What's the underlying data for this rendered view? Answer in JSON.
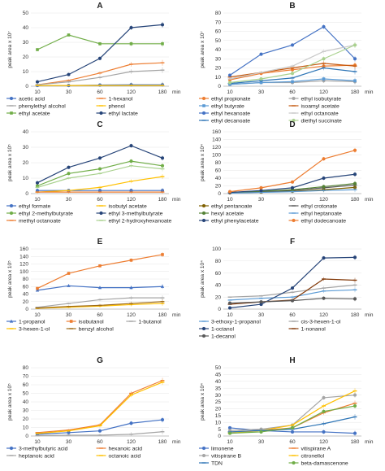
{
  "chart_data": [
    {
      "type": "line",
      "title": "A",
      "ylabel": "peak area x 10⁷",
      "x_unit": "min",
      "x": [
        10,
        30,
        60,
        120,
        180
      ],
      "ylim": [
        0,
        50
      ],
      "yticks": [
        0,
        10,
        20,
        30,
        40,
        50
      ],
      "legend_position": "bottom",
      "legend_columns": 2,
      "series": [
        {
          "name": "acetic acid",
          "color": "#4472c4",
          "marker": "circle",
          "values": [
            0.5,
            0.5,
            0.8,
            1,
            1
          ]
        },
        {
          "name": "1-hexanol",
          "color": "#ed7d31",
          "marker": "dash",
          "values": [
            1,
            4,
            9,
            15,
            16
          ]
        },
        {
          "name": "phenylethyl alcohol",
          "color": "#a5a5a5",
          "marker": "dash",
          "values": [
            1,
            3,
            6,
            10,
            11
          ]
        },
        {
          "name": "phenol",
          "color": "#ffc000",
          "marker": "dash",
          "values": [
            0.5,
            0.5,
            0.5,
            0.5,
            0.5
          ]
        },
        {
          "name": "ethyl acetate",
          "color": "#70ad47",
          "marker": "square",
          "values": [
            25,
            35,
            29,
            29,
            29
          ]
        },
        {
          "name": "ethyl lactate",
          "color": "#264478",
          "marker": "circle",
          "values": [
            3,
            8,
            19,
            40,
            42
          ]
        }
      ]
    },
    {
      "type": "line",
      "title": "B",
      "ylabel": "peak area x 10⁷",
      "x_unit": "min",
      "x": [
        10,
        30,
        60,
        120,
        180
      ],
      "ylim": [
        0,
        80
      ],
      "yticks": [
        0,
        10,
        20,
        30,
        40,
        50,
        60,
        70,
        80
      ],
      "legend_position": "bottom",
      "legend_columns": 2,
      "series": [
        {
          "name": "ethyl propionate",
          "color": "#ed7d31",
          "marker": "circle",
          "values": [
            7,
            14,
            18,
            22,
            23
          ]
        },
        {
          "name": "ethyl isobutyrate",
          "color": "#a5a5a5",
          "marker": "circle",
          "values": [
            2,
            4,
            4,
            6,
            5
          ]
        },
        {
          "name": "ethyl butyrate",
          "color": "#5b9bd5",
          "marker": "square",
          "values": [
            2,
            4,
            5,
            8,
            6
          ]
        },
        {
          "name": "isoamyl acetate",
          "color": "#c55a11",
          "marker": "dash",
          "values": [
            10,
            15,
            20,
            25,
            22
          ]
        },
        {
          "name": "ethyl hexanoate",
          "color": "#4472c4",
          "marker": "circle",
          "values": [
            12,
            35,
            45,
            65,
            30
          ]
        },
        {
          "name": "ethyl octanoate",
          "color": "#c9c9c9",
          "marker": "dash",
          "values": [
            8,
            15,
            22,
            38,
            45
          ]
        },
        {
          "name": "ethyl decanoate",
          "color": "#2e75b6",
          "marker": "dash",
          "values": [
            3,
            6,
            9,
            20,
            16
          ]
        },
        {
          "name": "diethyl succinate",
          "color": "#a9d18e",
          "marker": "circle",
          "values": [
            4,
            8,
            14,
            30,
            45
          ]
        }
      ]
    },
    {
      "type": "line",
      "title": "C",
      "ylabel": "peak area x 10⁵",
      "x_unit": "min",
      "x": [
        10,
        30,
        60,
        120,
        180
      ],
      "ylim": [
        0,
        40
      ],
      "yticks": [
        0,
        10,
        20,
        30,
        40
      ],
      "legend_position": "bottom",
      "legend_columns": 2,
      "series": [
        {
          "name": "ethyl formate",
          "color": "#4472c4",
          "marker": "circle",
          "values": [
            2,
            2,
            2,
            2,
            2
          ]
        },
        {
          "name": "isobutyl acetate",
          "color": "#ffc000",
          "marker": "dash",
          "values": [
            1,
            2,
            4,
            8,
            11
          ]
        },
        {
          "name": "ethyl 2-methylbutyrate",
          "color": "#70ad47",
          "marker": "circle",
          "values": [
            5,
            13,
            16,
            21,
            18
          ]
        },
        {
          "name": "ethyl 3-methylbutyrate",
          "color": "#264478",
          "marker": "circle",
          "values": [
            7,
            17,
            23,
            31,
            23
          ]
        },
        {
          "name": "methyl octanoate",
          "color": "#ed7d31",
          "marker": "dash",
          "values": [
            1,
            1,
            1,
            1,
            1
          ]
        },
        {
          "name": "ethyl 2-hydroxyhexanoate",
          "color": "#a9d18e",
          "marker": "dash",
          "values": [
            4,
            10,
            13,
            18,
            16
          ]
        }
      ]
    },
    {
      "type": "line",
      "title": "D",
      "ylabel": "peak area x 10⁴",
      "x_unit": "min",
      "x": [
        10,
        30,
        60,
        120,
        180
      ],
      "ylim": [
        0,
        160
      ],
      "yticks": [
        0,
        20,
        40,
        60,
        80,
        100,
        120,
        140,
        160
      ],
      "legend_position": "bottom",
      "legend_columns": 2,
      "series": [
        {
          "name": "ethyl pentanoate",
          "color": "#7f6000",
          "marker": "circle",
          "values": [
            2,
            4,
            6,
            10,
            16
          ]
        },
        {
          "name": "ethyl crotonate",
          "color": "#595959",
          "marker": "dash",
          "values": [
            2,
            5,
            8,
            15,
            22
          ]
        },
        {
          "name": "hexyl acetate",
          "color": "#548235",
          "marker": "circle",
          "values": [
            3,
            6,
            10,
            18,
            26
          ]
        },
        {
          "name": "ethyl heptanoate",
          "color": "#5b9bd5",
          "marker": "dash",
          "values": [
            1,
            3,
            5,
            8,
            10
          ]
        },
        {
          "name": "ethyl phenylacetate",
          "color": "#264478",
          "marker": "circle",
          "values": [
            3,
            8,
            15,
            40,
            50
          ]
        },
        {
          "name": "ethyl dodecanoate",
          "color": "#ed7d31",
          "marker": "circle",
          "values": [
            5,
            15,
            30,
            90,
            112
          ]
        }
      ]
    },
    {
      "type": "line",
      "title": "E",
      "ylabel": "peak area x 10⁵",
      "x_unit": "min",
      "x": [
        10,
        30,
        60,
        120,
        180
      ],
      "ylim": [
        0,
        160
      ],
      "yticks": [
        0,
        20,
        40,
        60,
        80,
        100,
        120,
        140,
        160
      ],
      "legend_position": "bottom",
      "legend_columns": 3,
      "series": [
        {
          "name": "1-propanol",
          "color": "#4472c4",
          "marker": "triangle",
          "values": [
            50,
            62,
            57,
            57,
            60
          ]
        },
        {
          "name": "isobutanol",
          "color": "#ed7d31",
          "marker": "square",
          "values": [
            55,
            95,
            115,
            130,
            145
          ]
        },
        {
          "name": "1-butanol",
          "color": "#a5a5a5",
          "marker": "dash",
          "values": [
            5,
            15,
            25,
            30,
            30
          ]
        },
        {
          "name": "3-hexen-1-ol",
          "color": "#ffc000",
          "marker": "dash",
          "values": [
            2,
            5,
            8,
            12,
            15
          ]
        },
        {
          "name": "benzyl alcohol",
          "color": "#9e6b18",
          "marker": "dash",
          "values": [
            3,
            7,
            10,
            15,
            20
          ]
        }
      ]
    },
    {
      "type": "line",
      "title": "F",
      "ylabel": "peak area x 10⁴",
      "x_unit": "min",
      "x": [
        10,
        30,
        60,
        120,
        180
      ],
      "ylim": [
        0,
        100
      ],
      "yticks": [
        0,
        20,
        40,
        60,
        80,
        100
      ],
      "legend_position": "bottom",
      "legend_columns": 2,
      "series": [
        {
          "name": "3-ethoxy-1-propanol",
          "color": "#5b9bd5",
          "marker": "dash",
          "values": [
            15,
            18,
            20,
            30,
            32
          ]
        },
        {
          "name": "cis-3-hexen-1-ol",
          "color": "#a5a5a5",
          "marker": "dash",
          "values": [
            20,
            22,
            28,
            35,
            40
          ]
        },
        {
          "name": "1-octanol",
          "color": "#264478",
          "marker": "circle",
          "values": [
            2,
            8,
            35,
            85,
            86
          ]
        },
        {
          "name": "1-nonanol",
          "color": "#843c0c",
          "marker": "dash",
          "values": [
            8,
            12,
            15,
            50,
            48
          ]
        },
        {
          "name": "1-decanol",
          "color": "#595959",
          "marker": "circle",
          "values": [
            10,
            12,
            14,
            18,
            17
          ]
        }
      ]
    },
    {
      "type": "line",
      "title": "G",
      "ylabel": "peak area x 10⁵",
      "x_unit": "min",
      "x": [
        10,
        30,
        60,
        120,
        180
      ],
      "ylim": [
        0,
        80
      ],
      "yticks": [
        0,
        10,
        20,
        30,
        40,
        50,
        60,
        70,
        80
      ],
      "legend_position": "bottom",
      "legend_columns": 2,
      "series": [
        {
          "name": "3-methylbutyric acid",
          "color": "#4472c4",
          "marker": "circle",
          "values": [
            2,
            4,
            6,
            15,
            19
          ]
        },
        {
          "name": "hexanoic acid",
          "color": "#ed7d31",
          "marker": "dash",
          "values": [
            4,
            7,
            13,
            50,
            65
          ]
        },
        {
          "name": "heptanoic acid",
          "color": "#a5a5a5",
          "marker": "dash",
          "values": [
            0.5,
            1,
            1,
            2,
            5
          ]
        },
        {
          "name": "octanoic acid",
          "color": "#ffc000",
          "marker": "dash",
          "values": [
            3,
            6,
            12,
            48,
            63
          ]
        }
      ]
    },
    {
      "type": "line",
      "title": "H",
      "ylabel": "peak area x 10⁴",
      "x_unit": "min",
      "x": [
        10,
        30,
        60,
        120,
        180
      ],
      "ylim": [
        0,
        50
      ],
      "yticks": [
        0,
        5,
        10,
        15,
        20,
        25,
        30,
        35,
        40,
        45,
        50
      ],
      "legend_position": "bottom",
      "legend_columns": 2,
      "series": [
        {
          "name": "limonene",
          "color": "#4472c4",
          "marker": "circle",
          "values": [
            6,
            4,
            3,
            3,
            2
          ]
        },
        {
          "name": "vitispirane A",
          "color": "#ed7d31",
          "marker": "dash",
          "values": [
            3,
            4,
            6,
            17,
            24
          ]
        },
        {
          "name": "vitispirane B",
          "color": "#a5a5a5",
          "marker": "circle",
          "values": [
            4,
            5,
            8,
            28,
            30
          ]
        },
        {
          "name": "citronellol",
          "color": "#ffc000",
          "marker": "dash",
          "values": [
            2,
            4,
            8,
            22,
            33
          ]
        },
        {
          "name": "TDN",
          "color": "#2e75b6",
          "marker": "dash",
          "values": [
            3,
            4,
            5,
            9,
            14
          ]
        },
        {
          "name": "beta-damascenone",
          "color": "#70ad47",
          "marker": "circle",
          "values": [
            2,
            3,
            6,
            18,
            22
          ]
        }
      ]
    }
  ]
}
